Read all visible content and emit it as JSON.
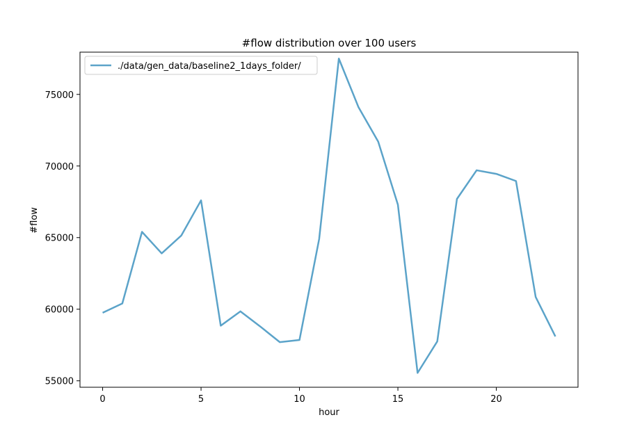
{
  "chart_data": {
    "type": "line",
    "title": "#flow distribution over 100 users",
    "xlabel": "hour",
    "ylabel": "#flow",
    "xlim": [
      -1.15,
      24.15
    ],
    "ylim": [
      54550,
      77950
    ],
    "xticks": [
      0,
      5,
      10,
      15,
      20
    ],
    "yticks": [
      55000,
      60000,
      65000,
      70000,
      75000
    ],
    "grid": false,
    "legend_position": "top-left",
    "series": [
      {
        "name": "./data/gen_data/baseline2_1days_folder/",
        "color": "#5ba3c9",
        "x": [
          0,
          1,
          2,
          3,
          4,
          5,
          6,
          7,
          8,
          9,
          10,
          11,
          12,
          13,
          14,
          15,
          16,
          17,
          18,
          19,
          20,
          21,
          22,
          23
        ],
        "values": [
          59750,
          60400,
          65400,
          63900,
          65150,
          67600,
          58850,
          59850,
          58800,
          57700,
          57850,
          64900,
          77500,
          74100,
          71700,
          67300,
          55550,
          57750,
          67700,
          69700,
          69450,
          68950,
          60850,
          58100
        ]
      }
    ]
  }
}
